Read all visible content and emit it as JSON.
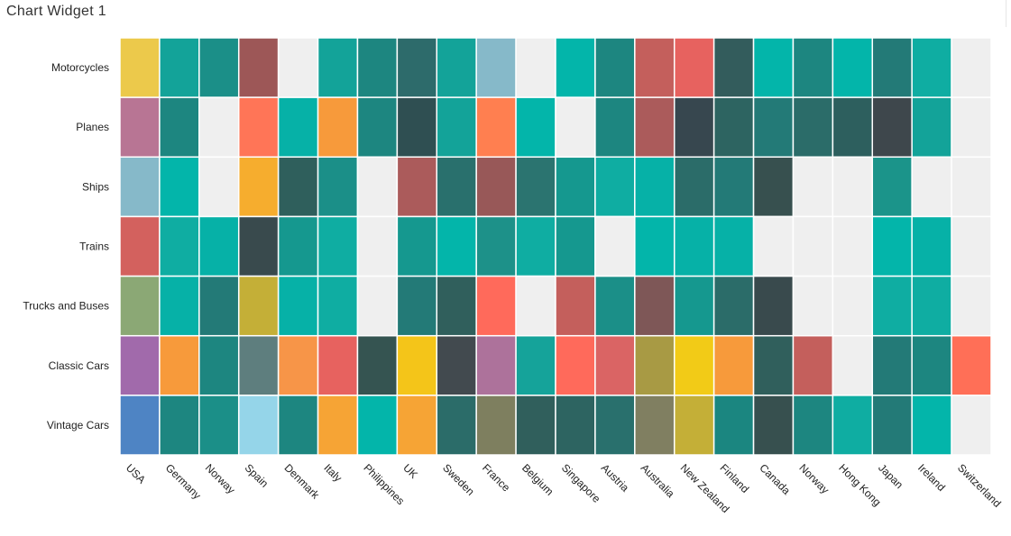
{
  "widget": {
    "title": "Chart Widget 1"
  },
  "chart_data": {
    "type": "heatmap",
    "rows": [
      "Motorcycles",
      "Planes",
      "Ships",
      "Trains",
      "Trucks and Buses",
      "Classic Cars",
      "Vintage Cars"
    ],
    "columns": [
      "USA",
      "Germany",
      "Norway",
      "Spain",
      "Denmark",
      "Italy",
      "Philippines",
      "UK",
      "Sweden",
      "France",
      "Belgium",
      "Singapore",
      "Austria",
      "Australia",
      "New Zealand",
      "Finland",
      "Canada",
      "Norway",
      "Hong Kong",
      "Japan",
      "Ireland",
      "Switzerland"
    ],
    "missing_color": "#efefef",
    "cell_colors": [
      [
        "#ecc94b",
        "#13a399",
        "#1b8f88",
        "#9d5757",
        null,
        "#13a399",
        "#1d8680",
        "#2d6b6b",
        "#13a399",
        "#86b9c9",
        null,
        "#03b5aa",
        "#1d8680",
        "#c45f5c",
        "#e7625f",
        "#335c5c",
        "#03b5aa",
        "#1d8680",
        "#03b5aa",
        "#237a77",
        "#0fada2",
        null
      ],
      [
        "#b87594",
        "#1d8680",
        null,
        "#ff7557",
        "#06b1a7",
        "#f79a3b",
        "#1d8680",
        "#2f4f52",
        "#13a399",
        "#ff7f50",
        "#03b5aa",
        null,
        "#1d8680",
        "#ab5b5b",
        "#37474f",
        "#2d6461",
        "#237a77",
        "#2b6c69",
        "#2d5f5e",
        "#3e474c",
        "#13a399",
        null
      ],
      [
        "#86b9c9",
        "#03b5aa",
        null,
        "#f6ad2e",
        "#2f5f5c",
        "#1b8f88",
        null,
        "#ab5b5b",
        "#29706d",
        "#985858",
        "#2b7470",
        "#15988f",
        "#0fada2",
        "#06b1a7",
        "#2b6c69",
        "#237a77",
        "#37504f",
        null,
        null,
        "#1b948a",
        null,
        null
      ],
      [
        "#d3615e",
        "#0fada2",
        "#06b1a7",
        "#394a4d",
        "#15988f",
        "#0fada2",
        null,
        "#15988f",
        "#03b5aa",
        "#1d9189",
        "#0fada2",
        "#15988f",
        null,
        "#03b5aa",
        "#06b1a7",
        "#06b1a7",
        null,
        null,
        null,
        "#03b5aa",
        "#06b1a7",
        null
      ],
      [
        "#8ba875",
        "#06b1a7",
        "#237a77",
        "#c4af37",
        "#06b1a7",
        "#0fada2",
        null,
        "#237a77",
        "#305f5c",
        "#ff6a5b",
        null,
        "#c45f5c",
        "#1b8f88",
        "#7e5757",
        "#15988f",
        "#2b6c69",
        "#394a4d",
        null,
        null,
        "#0fada2",
        "#0fada2",
        null
      ],
      [
        "#a16aab",
        "#f79a3b",
        "#1d8680",
        "#5e7e7e",
        "#f79548",
        "#e7625f",
        "#355451",
        "#f4c519",
        "#424a4f",
        "#ad729b",
        "#15a39a",
        "#ff6a5b",
        "#da6464",
        "#a89a44",
        "#f2cb17",
        "#f79a3b",
        "#305f5c",
        "#c45f5c",
        null,
        "#237a77",
        "#1d8680",
        "#ff6f57"
      ],
      [
        "#4e84c4",
        "#1d8680",
        "#1b8f88",
        "#95d5e9",
        "#1d8680",
        "#f6a435",
        "#03b5aa",
        "#f6a435",
        "#2b6c69",
        "#7e7f5f",
        "#305f5c",
        "#2d6461",
        "#29706d",
        "#807f61",
        "#c4af37",
        "#1b8680",
        "#37504f",
        "#1d8680",
        "#0fada2",
        "#237a77",
        "#03b5aa",
        null
      ]
    ]
  }
}
